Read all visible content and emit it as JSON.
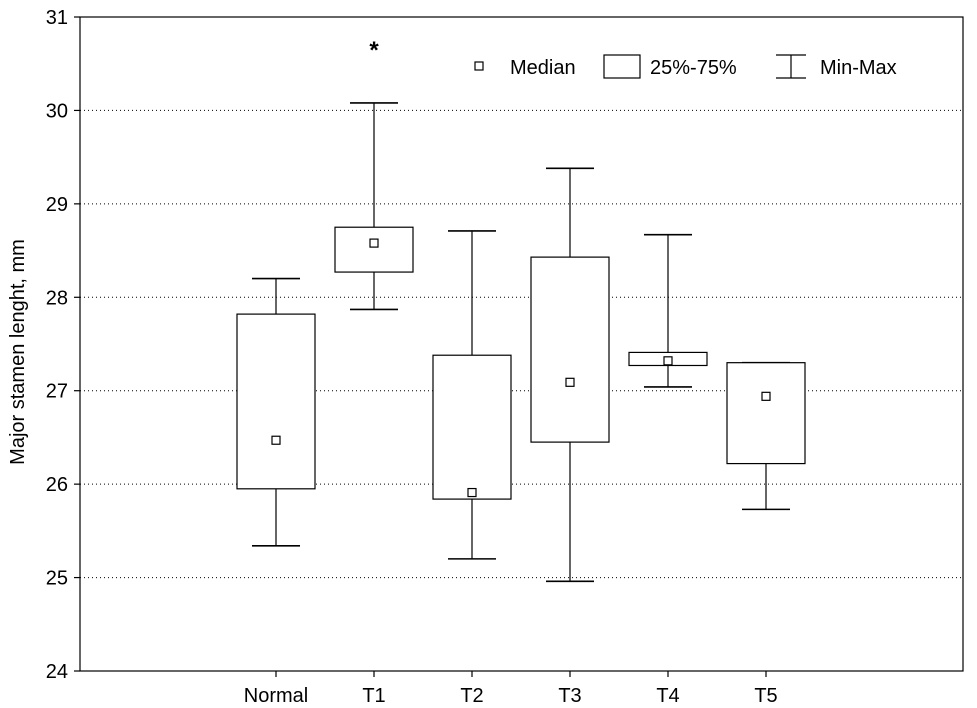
{
  "chart_data": {
    "type": "box",
    "ylabel": "Major stamen lenght, mm",
    "ylim": [
      24,
      31
    ],
    "yticks": [
      24,
      25,
      26,
      27,
      28,
      29,
      30,
      31
    ],
    "grid": "dotted horizontal",
    "legend_position": "top-right",
    "legend": {
      "median": "Median",
      "box": "25%-75%",
      "whisker": "Min-Max"
    },
    "categories": [
      "Normal",
      "T1",
      "T2",
      "T3",
      "T4",
      "T5"
    ],
    "series": [
      {
        "category": "Normal",
        "min": 25.34,
        "q1": 25.95,
        "median": 26.47,
        "q3": 27.82,
        "max": 28.2
      },
      {
        "category": "T1",
        "min": 27.87,
        "q1": 28.27,
        "median": 28.58,
        "q3": 28.75,
        "max": 30.08,
        "annotation": "*"
      },
      {
        "category": "T2",
        "min": 25.2,
        "q1": 25.84,
        "median": 25.91,
        "q3": 27.38,
        "max": 28.71
      },
      {
        "category": "T3",
        "min": 24.96,
        "q1": 26.45,
        "median": 27.09,
        "q3": 28.43,
        "max": 29.38
      },
      {
        "category": "T4",
        "min": 27.04,
        "q1": 27.27,
        "median": 27.32,
        "q3": 27.41,
        "max": 28.67
      },
      {
        "category": "T5",
        "min": 25.73,
        "q1": 26.22,
        "median": 26.94,
        "q3": 27.3,
        "max": 27.3
      }
    ]
  }
}
